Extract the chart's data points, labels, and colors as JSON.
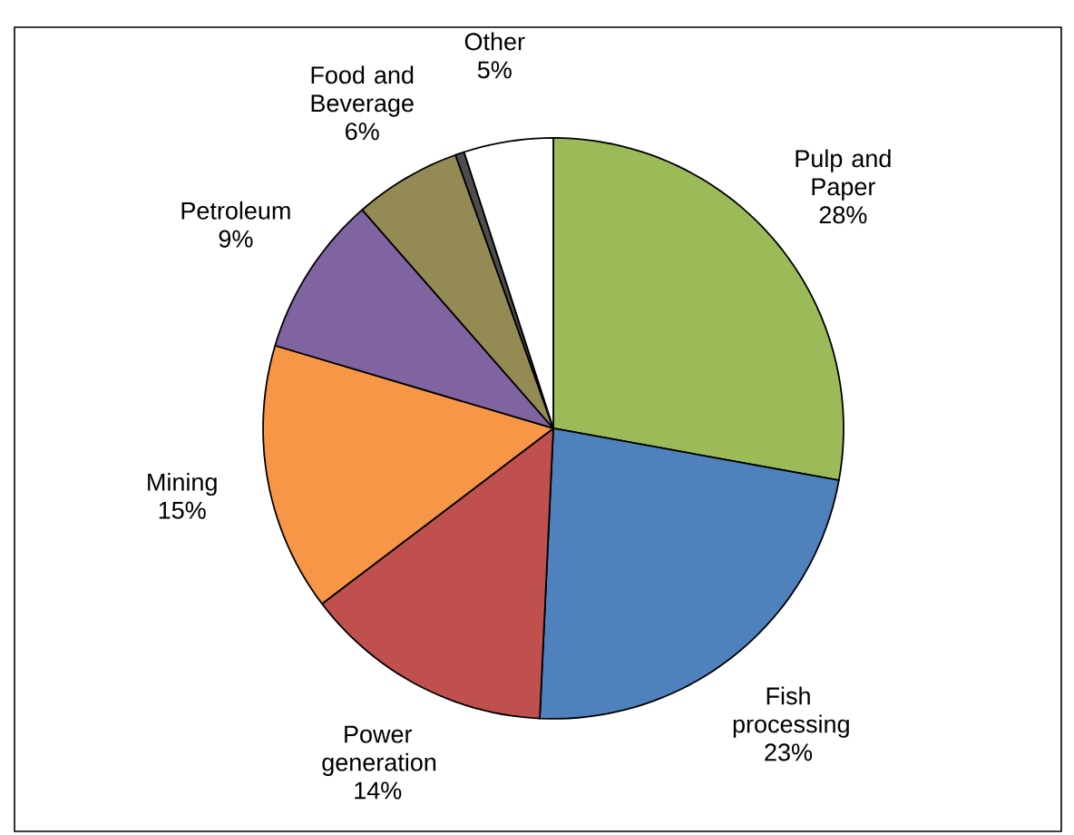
{
  "chart_data": {
    "type": "pie",
    "categories": [
      "Pulp and Paper",
      "Fish processing",
      "Power generation",
      "Mining",
      "Petroleum",
      "Food and Beverage",
      null,
      "Other"
    ],
    "values": [
      28,
      23,
      14,
      15,
      9,
      6,
      0.5,
      5
    ],
    "value_labels": [
      "28%",
      "23%",
      "14%",
      "15%",
      "9%",
      "6%",
      null,
      "5%"
    ],
    "colors": [
      "#9bbb59",
      "#4f81bd",
      "#c0504d",
      "#f79646",
      "#8064a2",
      "#948a54",
      "#4d4d4d",
      "#ffffff"
    ]
  }
}
